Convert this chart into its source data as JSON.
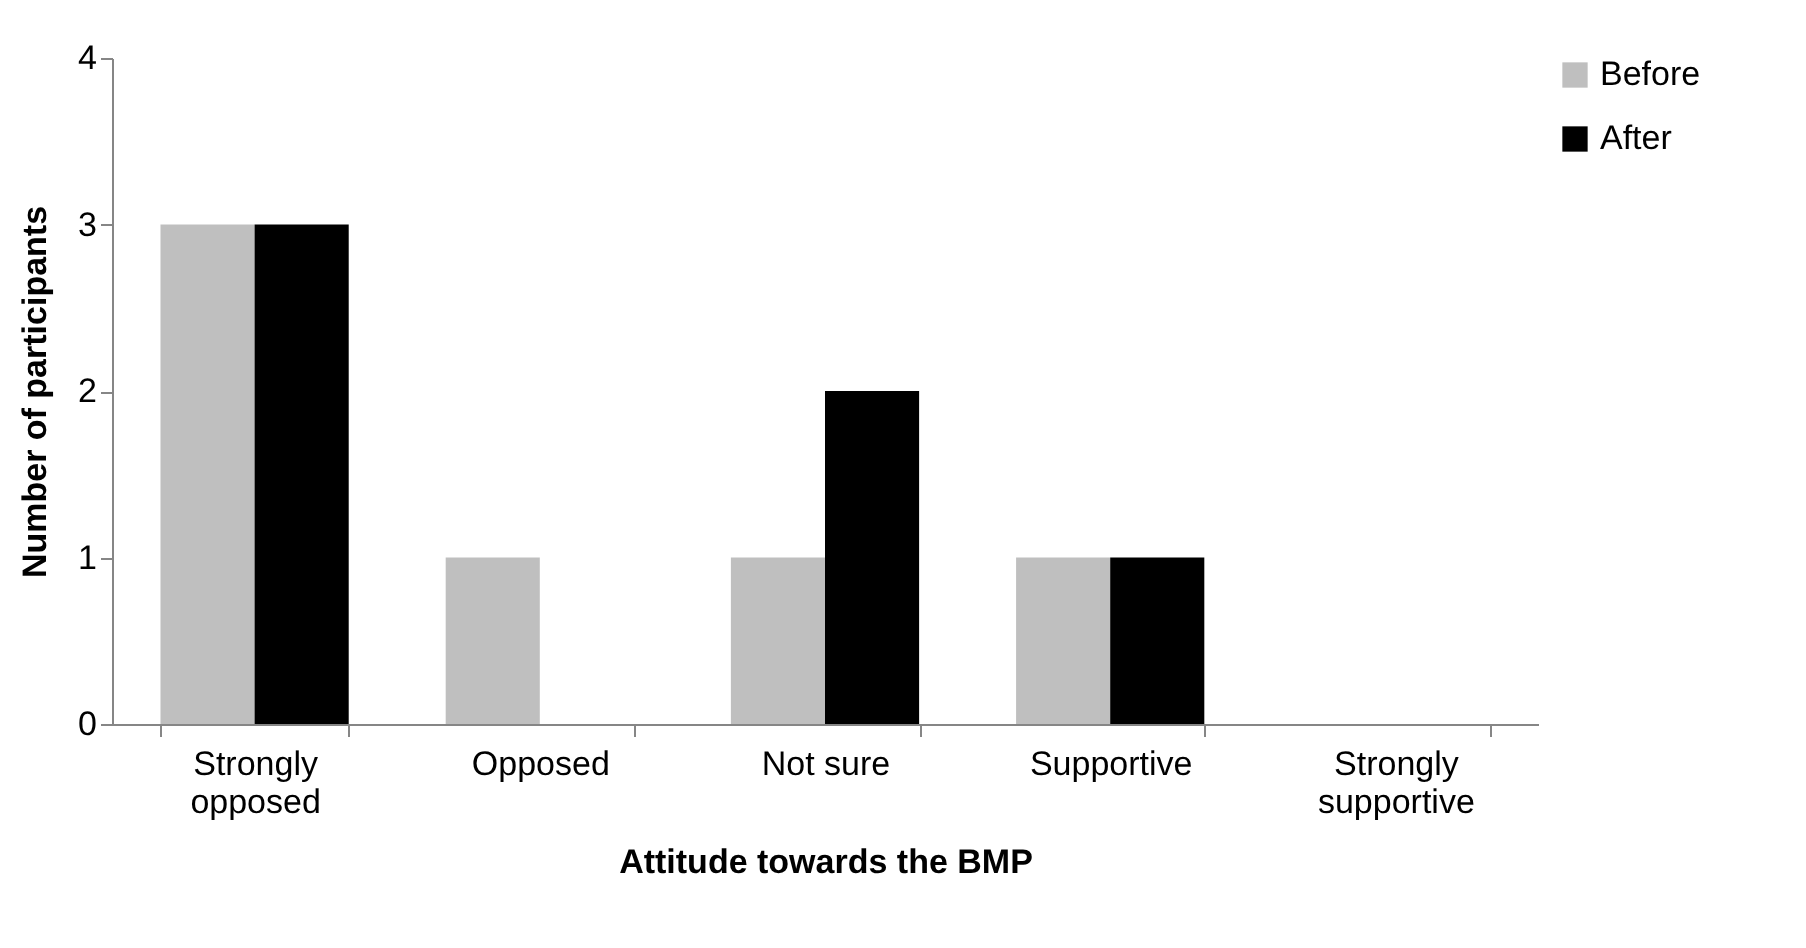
{
  "chart_data": {
    "type": "bar",
    "xlabel": "Attitude towards the BMP",
    "ylabel": "Number of participants",
    "categories": [
      "Strongly opposed",
      "Opposed",
      "Not sure",
      "Supportive",
      "Strongly supportive"
    ],
    "series": [
      {
        "name": "Before",
        "color": "#bfbfbf",
        "values": [
          3,
          1,
          1,
          1,
          0
        ]
      },
      {
        "name": "After",
        "color": "#000000",
        "values": [
          3,
          0,
          2,
          1,
          0
        ]
      }
    ],
    "ylim": [
      0,
      4
    ],
    "yticks": [
      0,
      1,
      2,
      3,
      4
    ],
    "grid": false,
    "legend": "right"
  }
}
